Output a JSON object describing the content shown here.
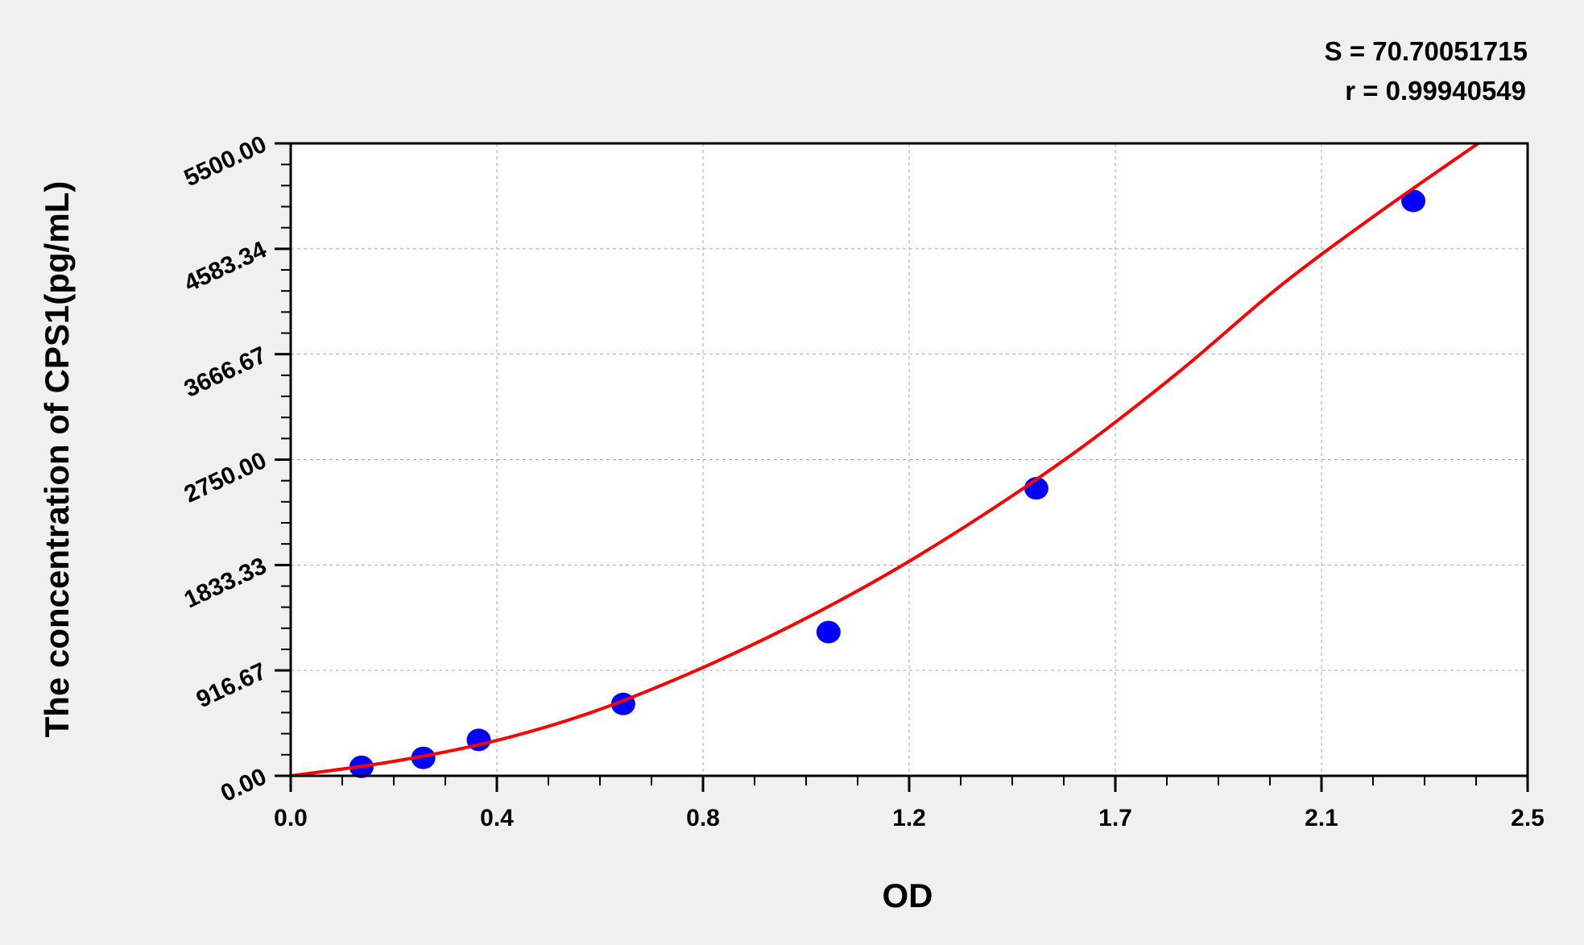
{
  "chart_data": {
    "type": "scatter",
    "title": "",
    "xlabel": "OD",
    "ylabel": "The concentration of CPS1(pg/mL)",
    "xlim": [
      0,
      2.5
    ],
    "ylim": [
      0,
      5500
    ],
    "x_tick_labels": [
      "0.0",
      "0.4",
      "0.8",
      "1.2",
      "1.7",
      "2.1",
      "2.5"
    ],
    "y_tick_labels": [
      "0.00",
      "916.67",
      "1833.33",
      "2750.00",
      "3666.67",
      "4583.34",
      "5500.00"
    ],
    "grid": true,
    "annotations": [
      "S = 70.70051715",
      "r = 0.99940549"
    ],
    "points": {
      "x": [
        0.143,
        0.268,
        0.38,
        0.672,
        1.087,
        1.507,
        2.269
      ],
      "y": [
        78.13,
        156.25,
        312.5,
        625,
        1250,
        2500,
        5000
      ],
      "color": "#0000ff"
    },
    "fit_curve": {
      "color": "#ff0000",
      "x": [
        0,
        0.2,
        0.4,
        0.6,
        0.8,
        1.0,
        1.2,
        1.4,
        1.6,
        1.8,
        2.0,
        2.2,
        2.4
      ],
      "y": [
        0,
        120,
        290,
        540,
        880,
        1280,
        1740,
        2270,
        2860,
        3530,
        4260,
        4900,
        5500
      ]
    }
  }
}
